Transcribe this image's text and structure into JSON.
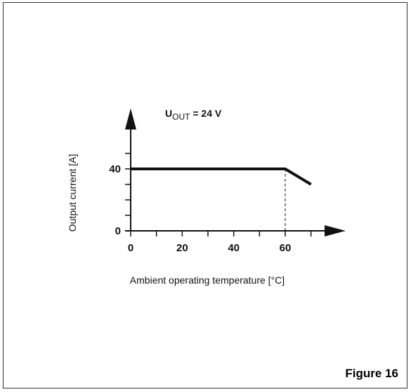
{
  "chart_data": {
    "type": "line",
    "title_main": "U",
    "title_sub": "OUT",
    "title_rest": " = 24 V",
    "xlabel": "Ambient operating temperature [°C]",
    "ylabel": "Output current [A]",
    "xticks": [
      0,
      20,
      40,
      60
    ],
    "yticks": [
      0,
      40
    ],
    "xminor_step": 10,
    "yminor_step": 10,
    "xlim": [
      0,
      72
    ],
    "ylim": [
      0,
      60
    ],
    "series": [
      {
        "x": [
          0,
          60,
          70
        ],
        "y": [
          40,
          40,
          30
        ]
      }
    ],
    "reference_line": {
      "x": 60,
      "y_from": 0,
      "y_to": 40,
      "style": "dashed"
    },
    "colors": {
      "line": "#111111",
      "axis": "#111111"
    }
  },
  "caption": "Figure 16"
}
